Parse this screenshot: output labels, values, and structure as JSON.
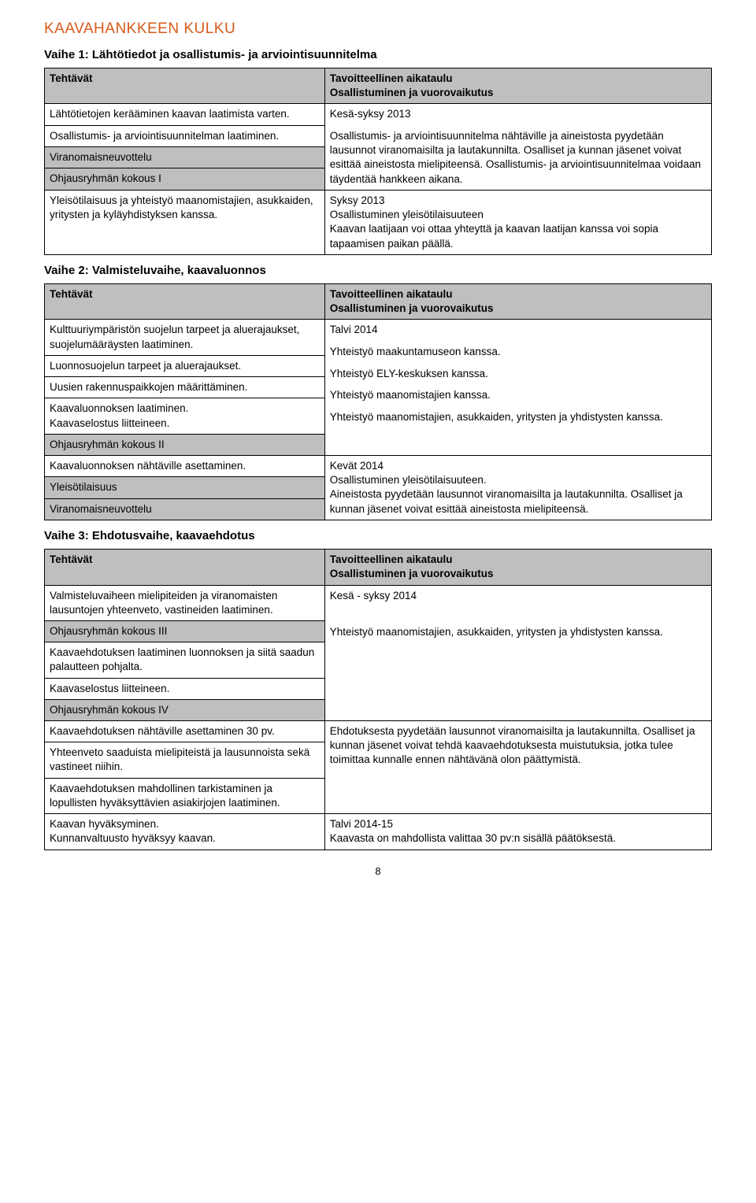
{
  "title": "KAAVAHANKKEEN KULKU",
  "pageNumber": "8",
  "stages": [
    {
      "heading": "Vaihe 1: Lähtötiedot ja osallistumis- ja arviointisuunnitelma",
      "header": {
        "left": "Tehtävät",
        "rightA": "Tavoitteellinen aikataulu",
        "rightB": "Osallistuminen ja vuorovaikutus"
      },
      "rows": [
        {
          "left": "Lähtötietojen kerääminen kaavan laatimista varten.",
          "rightSpan": 4,
          "right": [
            "Kesä-syksy 2013",
            "",
            "Osallistumis- ja arviointisuunnitelma nähtäville ja aineistosta pyydetään lausunnot viranomaisilta ja lautakunnilta. Osalliset ja kunnan jäsenet voivat esittää aineistosta mielipiteensä. Osallistumis- ja arviointisuunnitelmaa voidaan täydentää hankkeen aikana."
          ]
        },
        {
          "left": "Osallistumis- ja arviointisuunnitelman laatiminen."
        },
        {
          "left": "Viranomaisneuvottelu",
          "shadeLeft": true
        },
        {
          "left": "Ohjausryhmän kokous I",
          "shadeLeft": true
        },
        {
          "left": "Yleisötilaisuus ja yhteistyö maanomistajien, asukkaiden, yritysten ja kyläyhdistyksen kanssa.",
          "right": [
            "Syksy 2013",
            "Osallistuminen yleisötilaisuuteen",
            "Kaavan laatijaan voi ottaa yhteyttä ja kaavan laatijan kanssa voi sopia tapaamisen paikan päällä."
          ]
        }
      ]
    },
    {
      "heading": "Vaihe 2: Valmisteluvaihe, kaavaluonnos",
      "header": {
        "left": "Tehtävät",
        "rightA": "Tavoitteellinen aikataulu",
        "rightB": "Osallistuminen ja vuorovaikutus"
      },
      "rows": [
        {
          "left": "Kulttuuriympäristön suojelun tarpeet ja aluerajaukset, suojelumääräysten laatiminen.",
          "rightSpan": 5,
          "right": [
            "Talvi 2014",
            "",
            "Yhteistyö maakuntamuseon kanssa.",
            "",
            "Yhteistyö ELY-keskuksen kanssa.",
            "",
            "Yhteistyö maanomistajien kanssa.",
            "",
            "Yhteistyö maanomistajien, asukkaiden, yritysten ja yhdistysten kanssa."
          ]
        },
        {
          "left": "Luonnosuojelun tarpeet ja aluerajaukset."
        },
        {
          "left": "Uusien rakennuspaikkojen määrittäminen."
        },
        {
          "left": "Kaavaluonnoksen laatiminen.\nKaavaselostus liitteineen."
        },
        {
          "left": "Ohjausryhmän kokous II",
          "shadeLeft": true
        },
        {
          "left": "Kaavaluonnoksen nähtäville asettaminen.",
          "rightSpan": 3,
          "right": [
            "Kevät 2014",
            "Osallistuminen yleisötilaisuuteen.",
            "Aineistosta pyydetään lausunnot viranomaisilta ja lautakunnilta. Osalliset ja kunnan jäsenet voivat esittää aineistosta mielipiteensä."
          ]
        },
        {
          "left": "Yleisötilaisuus",
          "shadeLeft": true
        },
        {
          "left": "Viranomaisneuvottelu",
          "shadeLeft": true
        }
      ]
    },
    {
      "heading": "Vaihe 3: Ehdotusvaihe, kaavaehdotus",
      "header": {
        "left": "Tehtävät",
        "rightA": "Tavoitteellinen aikataulu",
        "rightB": "Osallistuminen ja vuorovaikutus"
      },
      "rows": [
        {
          "left": "Valmisteluvaiheen mielipiteiden ja viranomaisten lausuntojen yhteenveto, vastineiden laatiminen.",
          "rightSpan": 5,
          "right": [
            "Kesä - syksy 2014",
            "",
            "",
            "",
            "Yhteistyö maanomistajien, asukkaiden, yritysten ja yhdistysten kanssa."
          ]
        },
        {
          "left": "Ohjausryhmän kokous III",
          "shadeLeft": true
        },
        {
          "left": "Kaavaehdotuksen laatiminen luonnoksen ja siitä saadun palautteen pohjalta."
        },
        {
          "left": "Kaavaselostus liitteineen."
        },
        {
          "left": "Ohjausryhmän kokous IV",
          "shadeLeft": true
        },
        {
          "left": "Kaavaehdotuksen nähtäville asettaminen 30 pv.",
          "rightSpan": 3,
          "right": [
            "Ehdotuksesta pyydetään lausunnot viranomaisilta ja lautakunnilta. Osalliset ja kunnan jäsenet voivat tehdä kaavaehdotuksesta muistutuksia, jotka tulee toimittaa kunnalle ennen nähtävänä olon päättymistä."
          ]
        },
        {
          "left": "Yhteenveto saaduista mielipiteistä ja lausunnoista sekä vastineet niihin."
        },
        {
          "left": "Kaavaehdotuksen mahdollinen tarkistaminen ja lopullisten hyväksyttävien asiakirjojen laatiminen."
        },
        {
          "left": "Kaavan hyväksyminen.\nKunnanvaltuusto hyväksyy kaavan.",
          "right": [
            "Talvi 2014-15",
            "Kaavasta on mahdollista valittaa 30 pv:n sisällä päätöksestä."
          ]
        }
      ]
    }
  ]
}
